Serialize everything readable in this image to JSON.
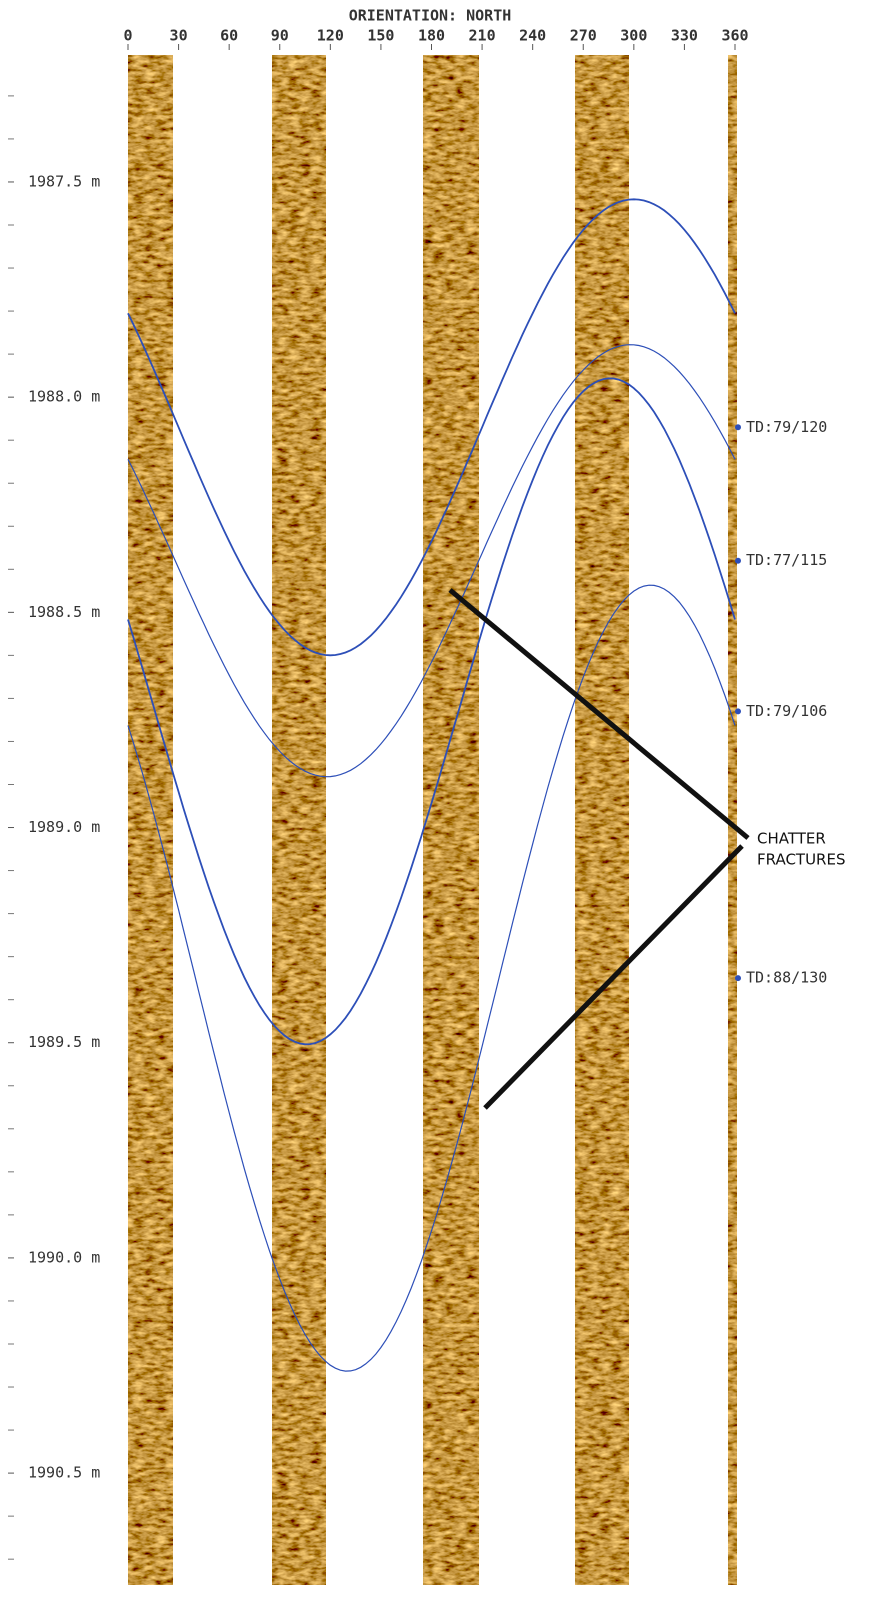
{
  "chart_data": {
    "type": "borehole-image",
    "title": "ORIENTATION: NORTH",
    "xlim": [
      0,
      360
    ],
    "xticks": [
      0,
      30,
      60,
      90,
      120,
      150,
      180,
      210,
      240,
      270,
      300,
      330,
      360
    ],
    "ylim": [
      1987.205,
      1990.76
    ],
    "yticks": [
      {
        "value": 1987.5,
        "label": "1987.5 m"
      },
      {
        "value": 1988.0,
        "label": "1988.0 m"
      },
      {
        "value": 1988.5,
        "label": "1988.5 m"
      },
      {
        "value": 1989.0,
        "label": "1989.0 m"
      },
      {
        "value": 1989.5,
        "label": "1989.5 m"
      },
      {
        "value": 1990.0,
        "label": "1990.0 m"
      },
      {
        "value": 1990.5,
        "label": "1990.5 m"
      }
    ],
    "yminorticks": [
      1987.3,
      1987.4,
      1987.6,
      1987.7,
      1987.8,
      1987.9,
      1988.1,
      1988.2,
      1988.3,
      1988.4,
      1988.6,
      1988.7,
      1988.8,
      1988.9,
      1989.1,
      1989.2,
      1989.3,
      1989.4,
      1989.6,
      1989.7,
      1989.8,
      1989.9,
      1990.1,
      1990.2,
      1990.3,
      1990.4,
      1990.6,
      1990.7
    ],
    "curve_color": "#2d4fb8",
    "fractures": [
      {
        "label": "TD:79/120",
        "depth": 1988.07
      },
      {
        "label": "TD:77/115",
        "depth": 1988.38
      },
      {
        "label": "TD:79/106",
        "depth": 1988.73
      },
      {
        "label": "TD:88/130",
        "depth": 1989.35
      }
    ],
    "annotation": [
      "CHATTER",
      "FRACTURES"
    ]
  }
}
